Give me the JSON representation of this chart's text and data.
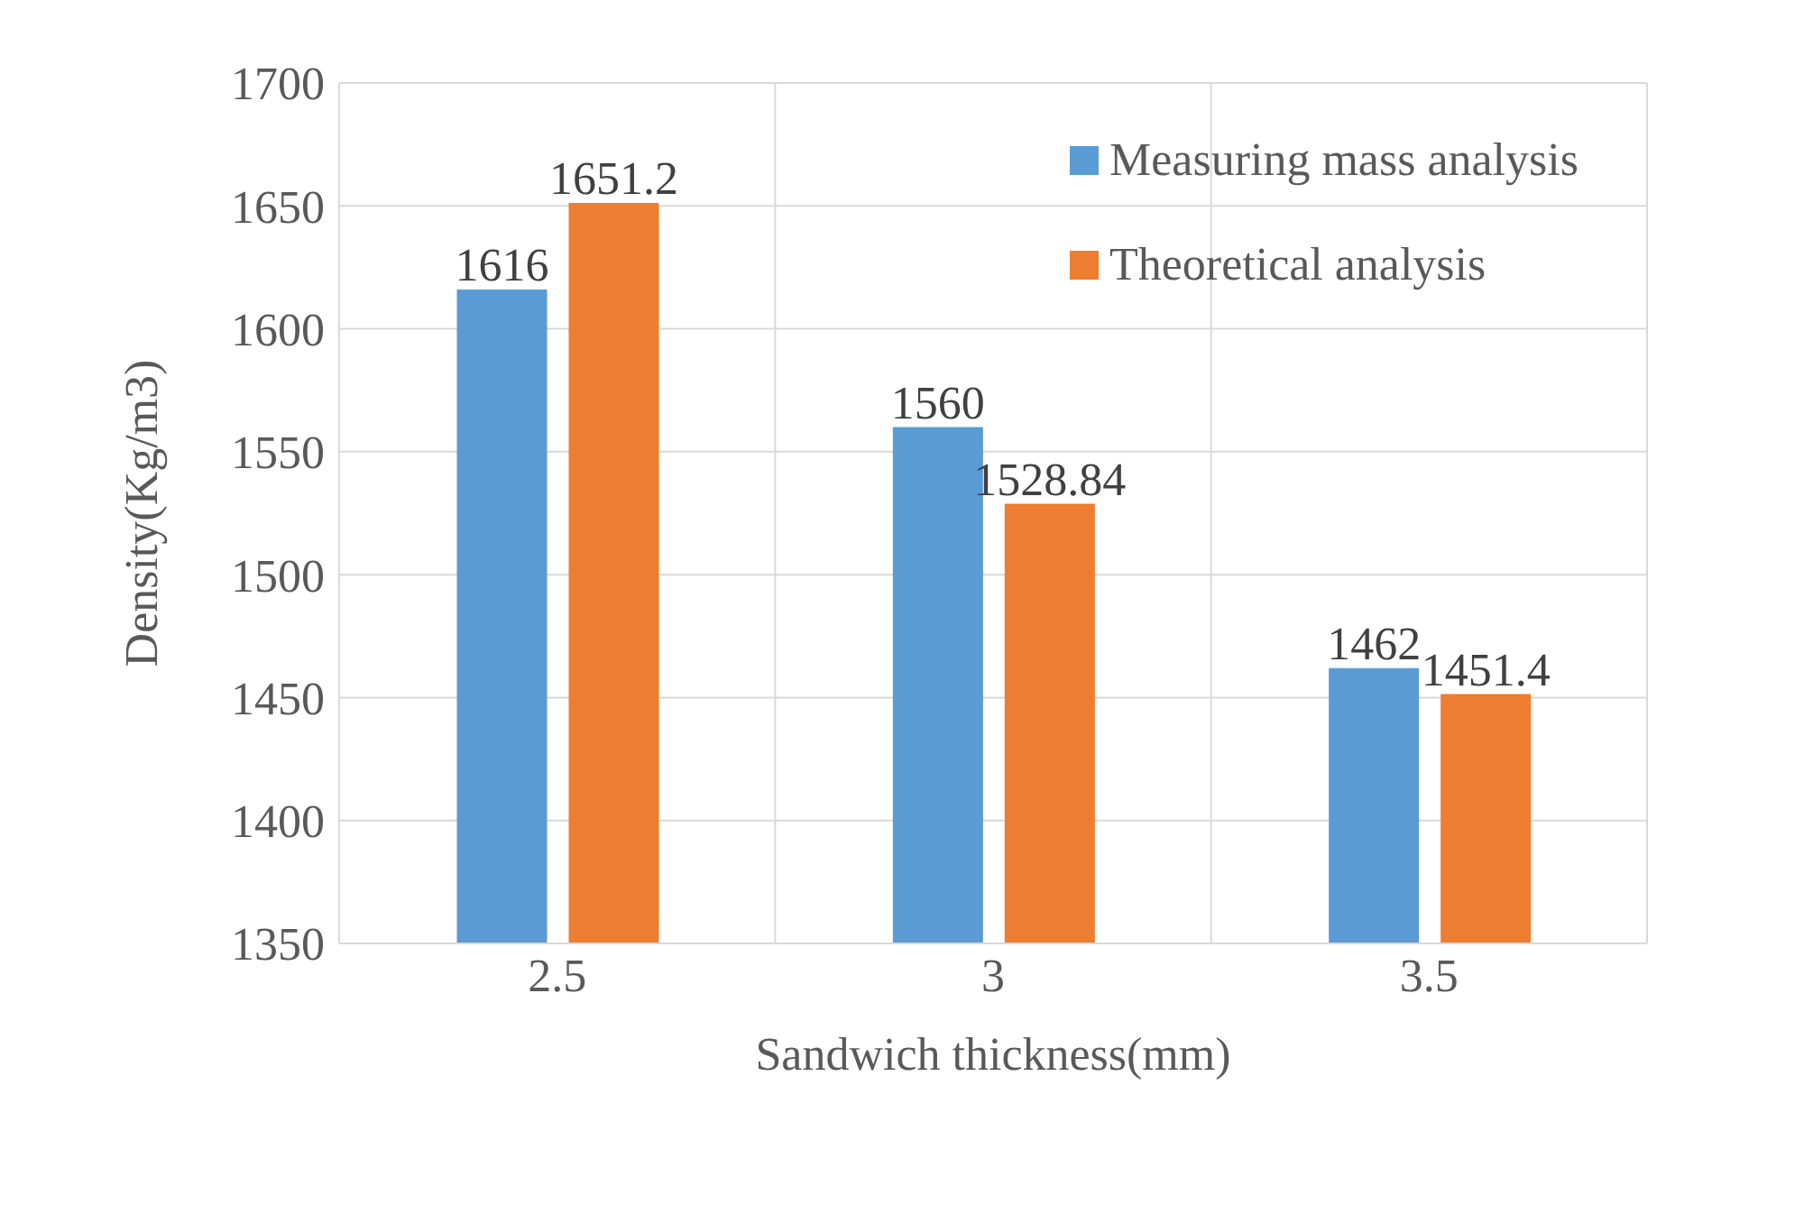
{
  "chart_data": {
    "type": "bar",
    "xlabel": "Sandwich thickness(mm)",
    "ylabel": "Density(Kg/m3)",
    "categories": [
      "2.5",
      "3",
      "3.5"
    ],
    "series": [
      {
        "name": "Measuring mass analysis",
        "color": "#5b9bd5",
        "values": [
          1616,
          1560,
          1462
        ]
      },
      {
        "name": "Theoretical analysis",
        "color": "#ed7d31",
        "values": [
          1651.2,
          1528.84,
          1451.4
        ]
      }
    ],
    "ylim": [
      1350,
      1700
    ],
    "yticks": [
      1350,
      1400,
      1450,
      1500,
      1550,
      1600,
      1650,
      1700
    ],
    "grid": true,
    "legend": "top right",
    "data_labels": true
  }
}
